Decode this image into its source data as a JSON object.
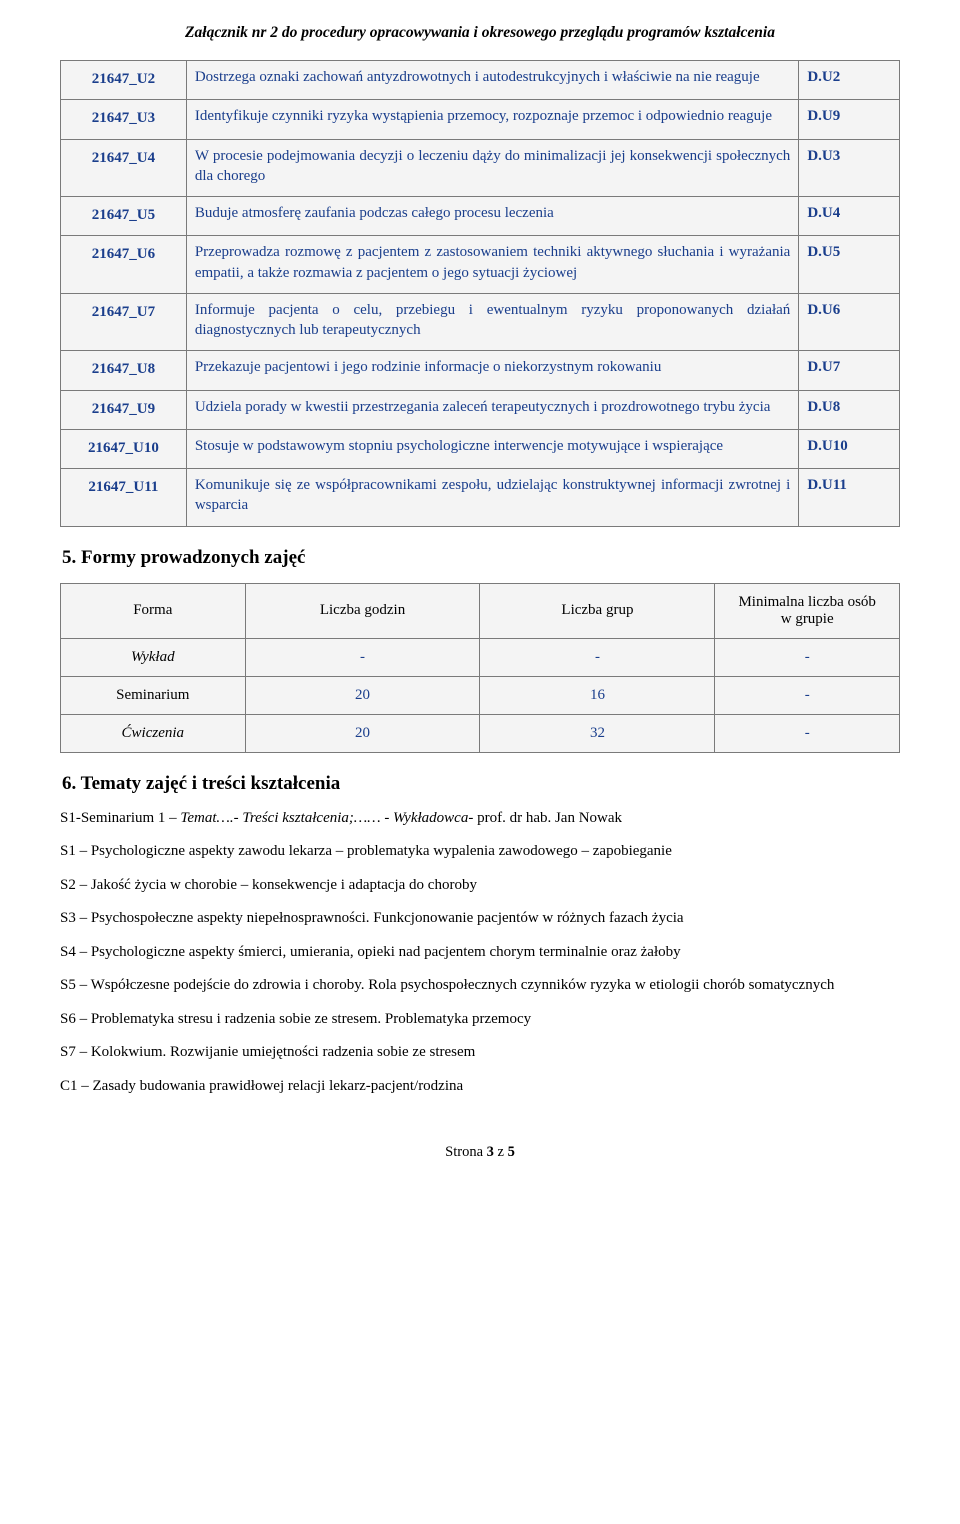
{
  "header_note": "Załącznik nr 2 do procedury opracowywania i okresowego przeglądu programów kształcenia",
  "skills": [
    {
      "id": "21647_U2",
      "desc": "Dostrzega oznaki zachowań antyzdrowotnych i autodestrukcyjnych i właściwie na nie reaguje",
      "code": "D.U2"
    },
    {
      "id": "21647_U3",
      "desc": "Identyfikuje czynniki ryzyka wystąpienia przemocy, rozpoznaje przemoc i odpowiednio reaguje",
      "code": "D.U9"
    },
    {
      "id": "21647_U4",
      "desc": "W procesie podejmowania decyzji o leczeniu dąży do minimalizacji jej konsekwencji społecznych dla chorego",
      "code": "D.U3"
    },
    {
      "id": "21647_U5",
      "desc": "Buduje atmosferę zaufania podczas całego procesu leczenia",
      "code": "D.U4"
    },
    {
      "id": "21647_U6",
      "desc": "Przeprowadza rozmowę z pacjentem z zastosowaniem techniki aktywnego słuchania i wyrażania empatii, a także rozmawia z pacjentem o jego sytuacji życiowej",
      "code": "D.U5"
    },
    {
      "id": "21647_U7",
      "desc": "Informuje pacjenta o celu, przebiegu i ewentualnym ryzyku proponowanych działań diagnostycznych lub terapeutycznych",
      "code": "D.U6"
    },
    {
      "id": "21647_U8",
      "desc": "Przekazuje pacjentowi i jego rodzinie informacje o niekorzystnym rokowaniu",
      "code": "D.U7"
    },
    {
      "id": "21647_U9",
      "desc": "Udziela porady w kwestii przestrzegania zaleceń terapeutycznych i prozdrowotnego trybu życia",
      "code": "D.U8"
    },
    {
      "id": "21647_U10",
      "desc": "Stosuje w podstawowym stopniu psychologiczne interwencje motywujące i wspierające",
      "code": "D.U10"
    },
    {
      "id": "21647_U11",
      "desc": "Komunikuje się ze współpracownikami zespołu, udzielając konstruktywnej informacji zwrotnej i wsparcia",
      "code": "D.U11"
    }
  ],
  "section5": {
    "heading": "5.  Formy prowadzonych zajęć",
    "headers": {
      "form": "Forma",
      "hours": "Liczba godzin",
      "groups": "Liczba grup",
      "min": "Minimalna liczba osób w grupie"
    },
    "rows": [
      {
        "form": "Wykład",
        "hours": "-",
        "groups": "-",
        "min": "-",
        "italic": true
      },
      {
        "form": "Seminarium",
        "hours": "20",
        "groups": "16",
        "min": "-",
        "italic": false
      },
      {
        "form": "Ćwiczenia",
        "hours": "20",
        "groups": "32",
        "min": "-",
        "italic": true
      }
    ]
  },
  "section6": {
    "heading": "6.  Tematy zajęć i treści kształcenia",
    "lines": [
      {
        "pre": "S1-Seminarium 1 ",
        "it": "– Temat….- Treści kształcenia;…… - Wykładowca-",
        "post": "  prof. dr hab. Jan Nowak"
      },
      {
        "pre": "S1 – Psychologiczne aspekty zawodu lekarza – problematyka wypalenia zawodowego – zapobieganie",
        "it": "",
        "post": ""
      },
      {
        "pre": "S2 – Jakość życia w chorobie – konsekwencje i adaptacja do choroby",
        "it": "",
        "post": ""
      },
      {
        "pre": "S3 – Psychospołeczne aspekty niepełnosprawności. Funkcjonowanie pacjentów w różnych fazach życia",
        "it": "",
        "post": ""
      },
      {
        "pre": "S4 – Psychologiczne aspekty śmierci, umierania, opieki nad pacjentem chorym terminalnie oraz żałoby",
        "it": "",
        "post": ""
      },
      {
        "pre": "S5 – Współczesne podejście do zdrowia i choroby. Rola psychospołecznych czynników ryzyka w etiologii chorób somatycznych",
        "it": "",
        "post": ""
      },
      {
        "pre": "S6 – Problematyka stresu i radzenia sobie ze stresem. Problematyka przemocy",
        "it": "",
        "post": ""
      },
      {
        "pre": "S7 – Kolokwium. Rozwijanie umiejętności radzenia sobie ze stresem",
        "it": "",
        "post": ""
      },
      {
        "pre": "C1 – Zasady budowania prawidłowej relacji lekarz-pacjent/rodzina",
        "it": "",
        "post": ""
      }
    ]
  },
  "footer": {
    "label": "Strona ",
    "page": "3",
    "of_label": " z ",
    "total": "5"
  }
}
